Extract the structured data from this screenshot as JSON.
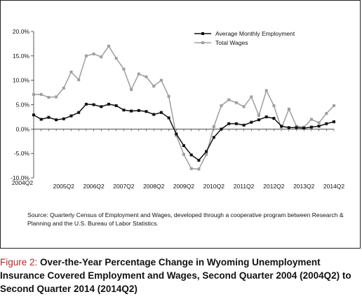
{
  "chart_data": {
    "type": "line",
    "title": "",
    "xlabel": "",
    "ylabel": "",
    "ylim": [
      -10,
      20
    ],
    "yticks": [
      "-10.0%",
      "-5.0%",
      "0.0%",
      "5.0%",
      "10.0%",
      "15.0%",
      "20.0%"
    ],
    "ytick_values": [
      -10,
      -5,
      0,
      5,
      10,
      15,
      20
    ],
    "x": [
      "2004Q2",
      "2004Q3",
      "2004Q4",
      "2005Q1",
      "2005Q2",
      "2005Q3",
      "2005Q4",
      "2006Q1",
      "2006Q2",
      "2006Q3",
      "2006Q4",
      "2007Q1",
      "2007Q2",
      "2007Q3",
      "2007Q4",
      "2008Q1",
      "2008Q2",
      "2008Q3",
      "2008Q4",
      "2009Q1",
      "2009Q2",
      "2009Q3",
      "2009Q4",
      "2010Q1",
      "2010Q2",
      "2010Q3",
      "2010Q4",
      "2011Q1",
      "2011Q2",
      "2011Q3",
      "2011Q4",
      "2012Q1",
      "2012Q2",
      "2012Q3",
      "2012Q4",
      "2013Q1",
      "2013Q2",
      "2013Q3",
      "2013Q4",
      "2014Q1",
      "2014Q2"
    ],
    "xtick_labels": [
      {
        "label": "2004Q2",
        "index": 0
      },
      {
        "label": "2005Q2",
        "index": 4
      },
      {
        "label": "2006Q2",
        "index": 8
      },
      {
        "label": "2007Q2",
        "index": 12
      },
      {
        "label": "2008Q2",
        "index": 16
      },
      {
        "label": "2009Q2",
        "index": 20
      },
      {
        "label": "2010Q2",
        "index": 24
      },
      {
        "label": "2011Q2",
        "index": 28
      },
      {
        "label": "2012Q2",
        "index": 32
      },
      {
        "label": "2013Q2",
        "index": 36
      },
      {
        "label": "2014Q2",
        "index": 40
      }
    ],
    "series": [
      {
        "name": "Average Monthly Employment",
        "color": "#111111",
        "marker": "square",
        "values": [
          2.9,
          2.0,
          2.4,
          1.9,
          2.1,
          2.7,
          3.4,
          5.1,
          5.0,
          4.6,
          5.1,
          4.8,
          3.9,
          3.7,
          3.8,
          3.6,
          3.0,
          3.4,
          2.3,
          -1.0,
          -3.4,
          -5.3,
          -6.4,
          -4.6,
          -1.7,
          0.0,
          1.1,
          1.1,
          0.8,
          1.4,
          1.9,
          2.5,
          2.2,
          0.6,
          0.3,
          0.3,
          0.2,
          0.4,
          0.6,
          1.1,
          1.5
        ]
      },
      {
        "name": "Total Wages",
        "color": "#9e9e9e",
        "marker": "square",
        "values": [
          7.1,
          7.1,
          6.5,
          6.6,
          8.4,
          11.7,
          10.1,
          15.0,
          15.4,
          14.8,
          17.0,
          14.5,
          12.3,
          8.1,
          11.3,
          10.7,
          8.8,
          10.0,
          6.7,
          -1.3,
          -5.2,
          -8.1,
          -8.2,
          -5.2,
          0.5,
          4.8,
          6.0,
          5.4,
          4.6,
          6.6,
          2.8,
          7.9,
          4.8,
          0.1,
          4.1,
          0.6,
          0.4,
          2.0,
          1.3,
          3.2,
          4.8
        ]
      }
    ],
    "grid": false,
    "legend_position": "top-right"
  },
  "source_note": "Source: Quarterly Census of Employment and Wages, developed through a cooperative program between Research & Planning and the U.S. Bureau of Labor Statistics.",
  "caption": {
    "label": "Figure 2:",
    "text": " Over-the-Year Percentage Change in Wyoming Unemployment Insurance Covered Employment and Wages, Second Quarter 2004 (2004Q2) to Second Quarter 2014 (2014Q2)"
  }
}
